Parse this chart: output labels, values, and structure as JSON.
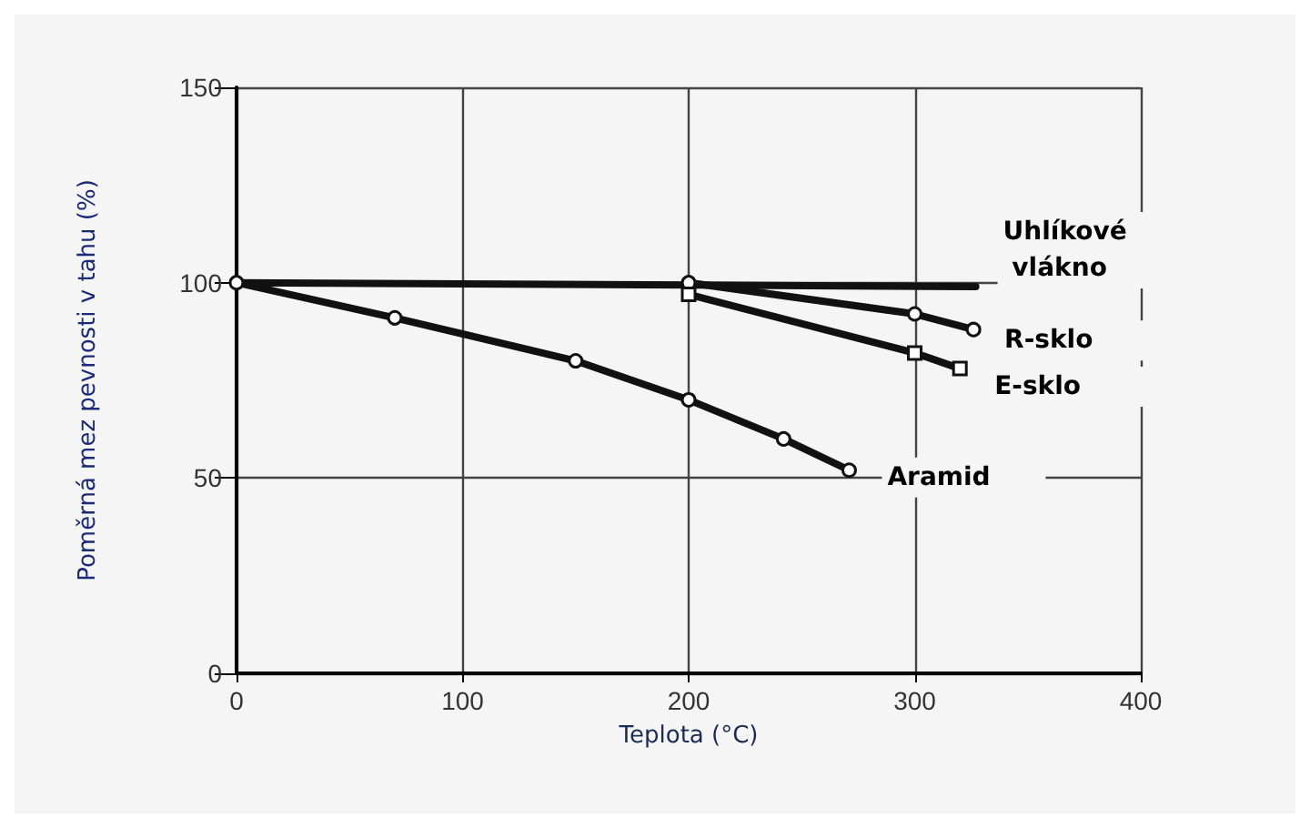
{
  "chart_data": {
    "type": "line",
    "xlabel": "Teplota (°C)",
    "ylabel": "Poměrná mez pevnosti v tahu (%)",
    "xlim": [
      0,
      400
    ],
    "xticks": [
      0,
      100,
      200,
      300,
      400
    ],
    "ylim": [
      0,
      150
    ],
    "yticks": [
      0,
      50,
      100,
      150
    ],
    "grid": true,
    "legend": false,
    "series": [
      {
        "name": "Uhlíkové vlákno",
        "color": "#111111",
        "x": [
          0,
          327
        ],
        "values": [
          100,
          99
        ]
      },
      {
        "name": "R-sklo",
        "color": "#111111",
        "marker": "circle",
        "x": [
          200,
          300,
          326
        ],
        "values": [
          100,
          92,
          88
        ]
      },
      {
        "name": "E-sklo",
        "color": "#111111",
        "marker": "square",
        "x": [
          200,
          300,
          320
        ],
        "values": [
          97,
          82,
          78
        ]
      },
      {
        "name": "Aramid",
        "color": "#111111",
        "marker": "circle",
        "x": [
          0,
          70,
          150,
          200,
          242,
          271
        ],
        "values": [
          100,
          91,
          80,
          70,
          60,
          52
        ]
      }
    ]
  }
}
